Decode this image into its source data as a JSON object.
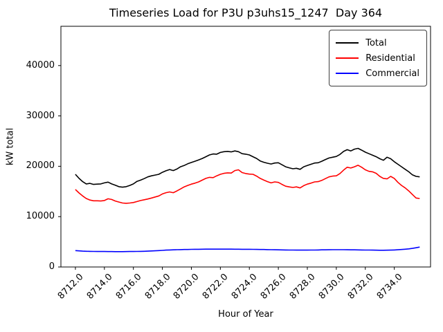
{
  "chart_data": {
    "type": "line",
    "title": "Timeseries Load for P3U p3uhs15_1247  Day 364",
    "xlabel": "Hour of Year",
    "ylabel": "kW total",
    "grid": false,
    "legend_position": "upper right",
    "xlim": [
      8711.0,
      8736.5
    ],
    "ylim": [
      0,
      47800
    ],
    "x_start": 8712.0,
    "x_step": 0.25,
    "xticks": {
      "values": [
        8712,
        8714,
        8716,
        8718,
        8720,
        8722,
        8724,
        8726,
        8728,
        8730,
        8732,
        8734
      ],
      "labels": [
        "8712.0",
        "8714.0",
        "8716.0",
        "8718.0",
        "8720.0",
        "8722.0",
        "8724.0",
        "8726.0",
        "8728.0",
        "8730.0",
        "8732.0",
        "8734.0"
      ]
    },
    "yticks": {
      "values": [
        0,
        10000,
        20000,
        30000,
        40000
      ],
      "labels": [
        "0",
        "10000",
        "20000",
        "30000",
        "40000"
      ]
    },
    "series": [
      {
        "name": "Total",
        "color": "#000000",
        "values": [
          18400,
          17600,
          16950,
          16500,
          16600,
          16400,
          16450,
          16500,
          16700,
          16850,
          16500,
          16250,
          15950,
          15850,
          15950,
          16200,
          16500,
          17000,
          17250,
          17550,
          17900,
          18100,
          18250,
          18400,
          18800,
          19100,
          19350,
          19150,
          19450,
          19900,
          20150,
          20500,
          20750,
          21000,
          21250,
          21550,
          21900,
          22250,
          22450,
          22400,
          22750,
          22900,
          22950,
          22850,
          23050,
          22900,
          22500,
          22400,
          22250,
          21900,
          21550,
          21050,
          20800,
          20600,
          20450,
          20650,
          20700,
          20300,
          19900,
          19700,
          19500,
          19600,
          19400,
          19900,
          20150,
          20400,
          20650,
          20700,
          21000,
          21350,
          21650,
          21800,
          21950,
          22350,
          22950,
          23300,
          23050,
          23400,
          23550,
          23200,
          22800,
          22500,
          22200,
          21900,
          21500,
          21200,
          21800,
          21500,
          20900,
          20400,
          19900,
          19400,
          18900,
          18300,
          18000,
          17900
        ]
      },
      {
        "name": "Residential",
        "color": "#ff0000",
        "values": [
          15400,
          14700,
          14100,
          13600,
          13300,
          13150,
          13150,
          13100,
          13200,
          13550,
          13400,
          13100,
          12900,
          12700,
          12650,
          12700,
          12800,
          13000,
          13200,
          13350,
          13500,
          13700,
          13900,
          14100,
          14500,
          14750,
          14900,
          14750,
          15100,
          15500,
          15900,
          16200,
          16450,
          16650,
          16900,
          17250,
          17600,
          17800,
          17750,
          18100,
          18400,
          18600,
          18700,
          18650,
          19150,
          19300,
          18750,
          18550,
          18450,
          18400,
          18050,
          17600,
          17250,
          16950,
          16700,
          16900,
          16800,
          16400,
          16050,
          15900,
          15800,
          15900,
          15700,
          16150,
          16450,
          16650,
          16900,
          16950,
          17200,
          17550,
          17900,
          18050,
          18100,
          18550,
          19250,
          19800,
          19650,
          19900,
          20200,
          19800,
          19300,
          19000,
          18900,
          18600,
          18000,
          17600,
          17500,
          18000,
          17600,
          16800,
          16200,
          15700,
          15100,
          14400,
          13700,
          13600
        ]
      },
      {
        "name": "Commercial",
        "color": "#0000ff",
        "values": [
          3250,
          3200,
          3150,
          3120,
          3100,
          3090,
          3080,
          3080,
          3070,
          3060,
          3060,
          3050,
          3050,
          3050,
          3060,
          3070,
          3080,
          3090,
          3100,
          3120,
          3150,
          3180,
          3220,
          3260,
          3300,
          3350,
          3380,
          3400,
          3430,
          3450,
          3470,
          3480,
          3500,
          3510,
          3520,
          3530,
          3540,
          3550,
          3550,
          3550,
          3550,
          3550,
          3540,
          3540,
          3530,
          3530,
          3520,
          3520,
          3510,
          3500,
          3490,
          3480,
          3470,
          3450,
          3440,
          3420,
          3400,
          3390,
          3380,
          3370,
          3360,
          3350,
          3350,
          3350,
          3350,
          3360,
          3370,
          3380,
          3400,
          3410,
          3420,
          3430,
          3440,
          3440,
          3430,
          3420,
          3410,
          3400,
          3390,
          3380,
          3370,
          3360,
          3350,
          3340,
          3330,
          3330,
          3340,
          3350,
          3380,
          3420,
          3470,
          3530,
          3600,
          3700,
          3820,
          3950
        ]
      }
    ]
  }
}
